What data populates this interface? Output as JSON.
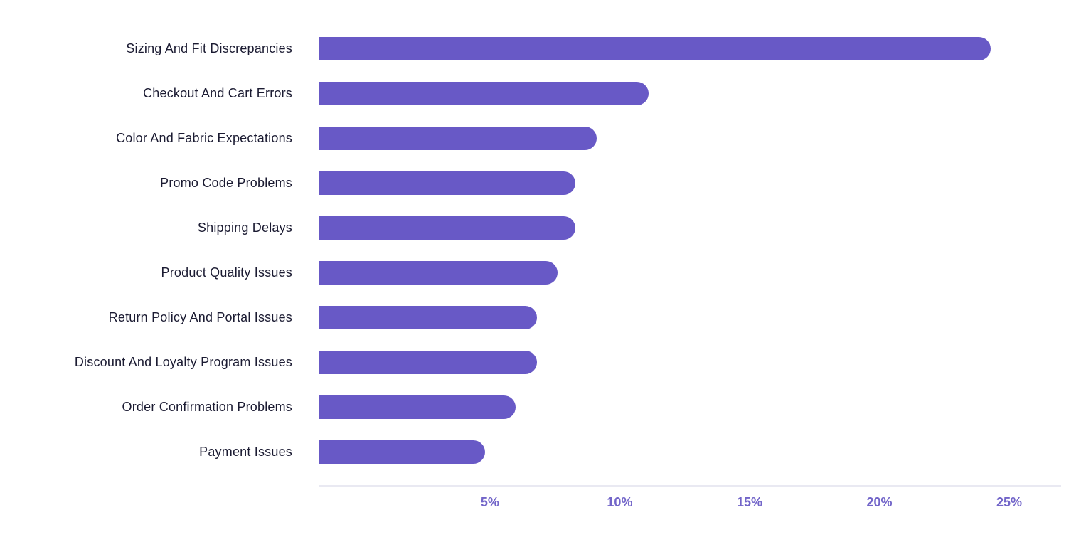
{
  "chart_data": {
    "type": "bar",
    "orientation": "horizontal",
    "title": "",
    "xlabel": "",
    "ylabel": "",
    "categories": [
      "Sizing And Fit Discrepancies",
      "Checkout And Cart Errors",
      "Color And Fabric Expectations",
      "Promo Code Problems",
      "Shipping Delays",
      "Product Quality Issues",
      "Return Policy And Portal Issues",
      "Discount And Loyalty Program Issues",
      "Order Confirmation Problems",
      "Payment Issues"
    ],
    "values": [
      24.3,
      11.1,
      9.1,
      8.3,
      8.3,
      7.6,
      6.8,
      6.8,
      6.0,
      4.8
    ],
    "unit": "%",
    "x_tick_labels": [
      "5%",
      "10%",
      "15%",
      "20%",
      "25%"
    ],
    "x_tick_values": [
      5,
      10,
      15,
      20,
      25
    ],
    "xlim": [
      -1.6,
      27.0
    ],
    "grid": false,
    "legend": false,
    "colors": {
      "bar": "#6859c6",
      "category_label": "#1b1b32",
      "tick_label": "#7265c9",
      "axis_line": "#e9e9f2",
      "background": "#ffffff"
    }
  }
}
